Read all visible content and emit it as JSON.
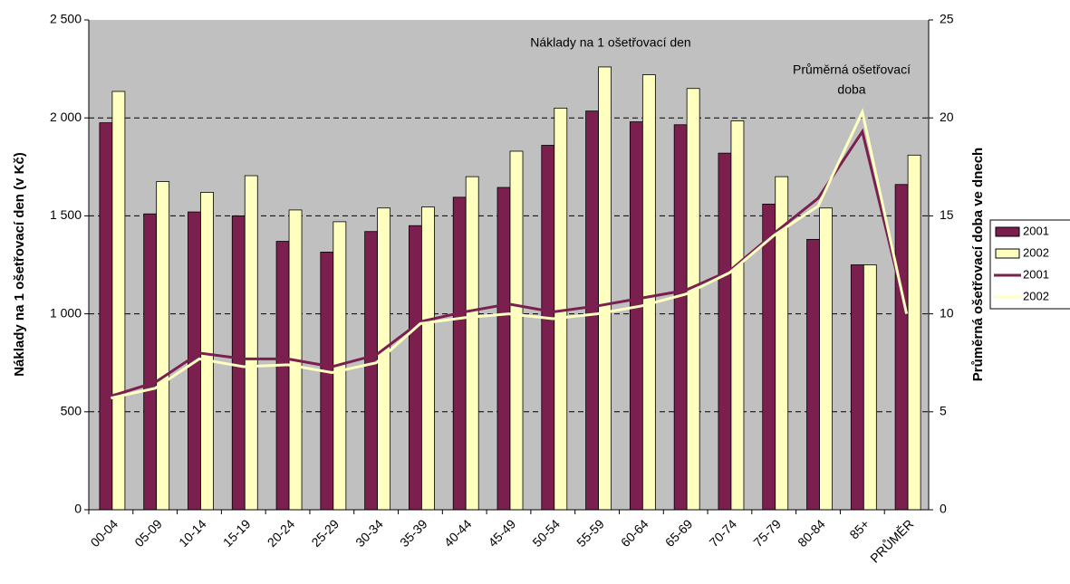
{
  "chart_data": {
    "type": "bar",
    "categories": [
      "00-04",
      "05-09",
      "10-14",
      "15-19",
      "20-24",
      "25-29",
      "30-34",
      "35-39",
      "40-44",
      "45-49",
      "50-54",
      "55-59",
      "60-64",
      "65-69",
      "70-74",
      "75-79",
      "80-84",
      "85+",
      "PRŮMĚR"
    ],
    "series": [
      {
        "name": "2001",
        "type": "bar",
        "color": "#7b1f4f",
        "values": [
          1975,
          1510,
          1520,
          1500,
          1370,
          1315,
          1420,
          1450,
          1595,
          1645,
          1860,
          2035,
          1980,
          1965,
          1820,
          1560,
          1380,
          1250,
          1660
        ]
      },
      {
        "name": "2002",
        "type": "bar",
        "color": "#ffffc0",
        "values": [
          2135,
          1675,
          1620,
          1705,
          1530,
          1470,
          1540,
          1545,
          1700,
          1830,
          2050,
          2260,
          2220,
          2150,
          1985,
          1700,
          1540,
          1250,
          1810
        ]
      },
      {
        "name": "2001",
        "type": "line",
        "axis": "y2",
        "color": "#7b1f4f",
        "values": [
          5.8,
          6.5,
          8.0,
          7.7,
          7.7,
          7.3,
          7.9,
          9.6,
          10.1,
          10.5,
          10.1,
          10.4,
          10.8,
          11.2,
          12.2,
          14.1,
          15.9,
          19.3,
          10.0
        ]
      },
      {
        "name": "2002",
        "type": "line",
        "axis": "y2",
        "color": "#ffffc0",
        "values": [
          5.7,
          6.2,
          7.7,
          7.3,
          7.4,
          7.0,
          7.5,
          9.5,
          9.8,
          10.0,
          9.75,
          10.0,
          10.4,
          11.0,
          12.1,
          14.0,
          15.5,
          20.3,
          10.0
        ]
      }
    ],
    "ylabel": "Náklady na 1 ošetřovací den (v Kč)",
    "y2label": "Průměrná ošetřovací doba ve dnech",
    "ylim": [
      0,
      2500
    ],
    "yticks": [
      0,
      500,
      {
        "value": 1000,
        "label": "1 000"
      },
      {
        "value": 1500,
        "label": "1 500"
      },
      {
        "value": 2000,
        "label": "2 000"
      },
      {
        "value": 2500,
        "label": "2 500"
      }
    ],
    "y2lim": [
      0,
      25
    ],
    "y2ticks": [
      0,
      5,
      10,
      15,
      20,
      25
    ],
    "annotations": [
      {
        "lines": [
          "Náklady na 1 ošetřovací den"
        ]
      },
      {
        "lines": [
          "Průměrná ošetřovací",
          "doba"
        ]
      }
    ],
    "grid": true,
    "legend": "right"
  }
}
